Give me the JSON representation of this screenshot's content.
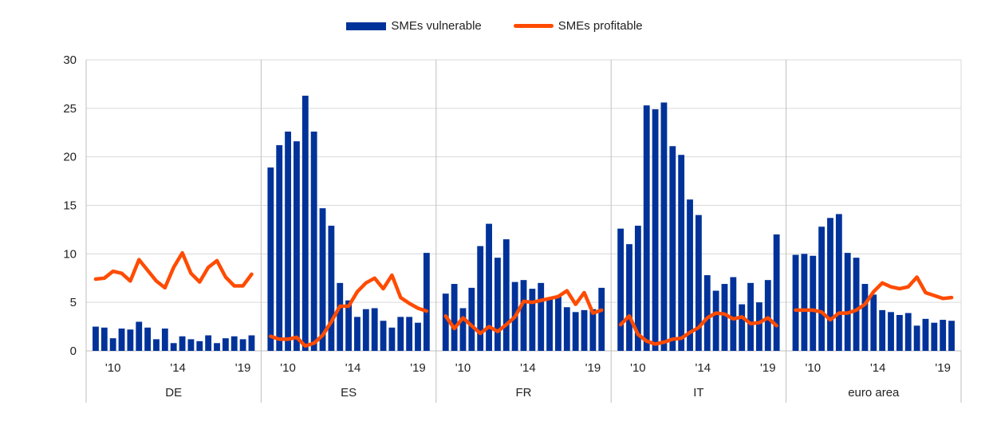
{
  "chart_data": {
    "type": "bar",
    "ylim": [
      0,
      30
    ],
    "yticks": [
      0,
      5,
      10,
      15,
      20,
      25,
      30
    ],
    "grid": true,
    "legend_position": "top-center",
    "legend": [
      {
        "label": "SMEs vulnerable",
        "kind": "bar",
        "color": "#003299"
      },
      {
        "label": "SMEs profitable",
        "kind": "line",
        "color": "#ff4b00"
      }
    ],
    "x_tick_labels": [
      "'10",
      "'14",
      "'19"
    ],
    "groups": [
      {
        "name": "DE",
        "vulnerable": [
          2.5,
          2.4,
          1.3,
          2.3,
          2.2,
          3.0,
          2.4,
          1.2,
          2.3,
          0.8,
          1.5,
          1.2,
          1.0,
          1.6,
          0.8,
          1.3,
          1.5,
          1.2,
          1.6
        ],
        "profitable": [
          7.4,
          7.5,
          8.2,
          8.0,
          7.2,
          9.4,
          8.3,
          7.2,
          6.5,
          8.6,
          10.1,
          8.0,
          7.1,
          8.6,
          9.3,
          7.6,
          6.7,
          6.7,
          7.9
        ]
      },
      {
        "name": "ES",
        "vulnerable": [
          18.9,
          21.2,
          22.6,
          21.6,
          26.3,
          22.6,
          14.7,
          12.9,
          7.0,
          5.2,
          3.5,
          4.3,
          4.4,
          3.1,
          2.4,
          3.5,
          3.5,
          2.9,
          10.1
        ],
        "profitable": [
          1.5,
          1.2,
          1.2,
          1.4,
          0.5,
          0.8,
          1.6,
          3.0,
          4.6,
          4.6,
          6.1,
          7.0,
          7.5,
          6.4,
          7.8,
          5.5,
          4.9,
          4.4,
          4.1
        ]
      },
      {
        "name": "FR",
        "vulnerable": [
          5.9,
          6.9,
          4.4,
          6.5,
          10.8,
          13.1,
          9.6,
          11.5,
          7.1,
          7.3,
          6.4,
          7.0,
          5.5,
          5.6,
          4.5,
          4.0,
          4.2,
          4.3,
          6.5
        ],
        "profitable": [
          3.6,
          2.3,
          3.4,
          2.6,
          1.8,
          2.5,
          2.0,
          2.7,
          3.5,
          5.1,
          5.0,
          5.2,
          5.4,
          5.6,
          6.2,
          4.8,
          6.0,
          3.9,
          4.2
        ]
      },
      {
        "name": "IT",
        "vulnerable": [
          12.6,
          11.0,
          12.9,
          25.3,
          24.9,
          25.6,
          21.1,
          20.2,
          15.6,
          14.0,
          7.8,
          6.2,
          6.9,
          7.6,
          4.8,
          7.0,
          5.0,
          7.3,
          12.0
        ],
        "profitable": [
          2.7,
          3.6,
          1.7,
          1.0,
          0.7,
          0.9,
          1.2,
          1.3,
          1.9,
          2.4,
          3.4,
          3.9,
          3.8,
          3.3,
          3.5,
          2.8,
          2.9,
          3.4,
          2.6
        ]
      },
      {
        "name": "euro area",
        "vulnerable": [
          9.9,
          10.0,
          9.8,
          12.8,
          13.7,
          14.1,
          10.1,
          9.6,
          6.9,
          5.8,
          4.2,
          4.0,
          3.7,
          3.9,
          2.6,
          3.3,
          2.9,
          3.2,
          3.1
        ],
        "profitable": [
          4.2,
          4.2,
          4.2,
          4.0,
          3.2,
          3.9,
          3.9,
          4.2,
          4.8,
          6.1,
          7.0,
          6.6,
          6.4,
          6.6,
          7.6,
          6.0,
          5.7,
          5.4,
          5.5
        ]
      }
    ]
  }
}
